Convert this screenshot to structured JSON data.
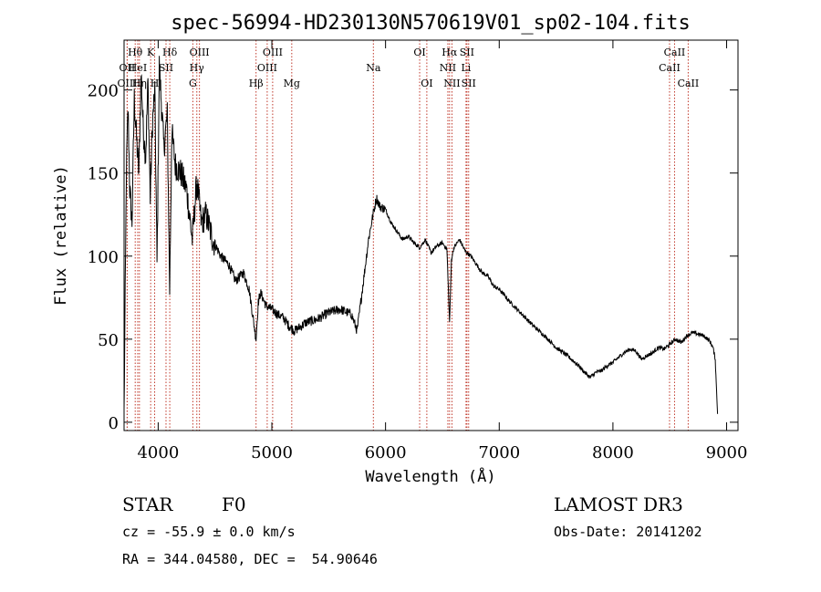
{
  "chart_data": {
    "type": "line",
    "title": "spec-56994-HD230130N570619V01_sp02-104.fits",
    "xlabel": "Wavelength (Å)",
    "ylabel": "Flux (relative)",
    "xlim": [
      3700,
      9100
    ],
    "ylim": [
      -5,
      230
    ],
    "xticks": [
      4000,
      5000,
      6000,
      7000,
      8000,
      9000
    ],
    "yticks": [
      0,
      50,
      100,
      150,
      200
    ],
    "grid": false,
    "legend": "none",
    "series": [
      {
        "name": "flux",
        "x": [
          3700,
          3710,
          3720,
          3735,
          3750,
          3770,
          3790,
          3810,
          3830,
          3850,
          3870,
          3890,
          3910,
          3930,
          3950,
          3970,
          3990,
          4010,
          4030,
          4050,
          4080,
          4101,
          4120,
          4150,
          4200,
          4250,
          4300,
          4340,
          4380,
          4420,
          4480,
          4550,
          4620,
          4680,
          4750,
          4800,
          4861,
          4880,
          4900,
          4950,
          5000,
          5050,
          5100,
          5150,
          5200,
          5300,
          5400,
          5500,
          5600,
          5700,
          5750,
          5800,
          5850,
          5890,
          5920,
          5950,
          6000,
          6050,
          6100,
          6150,
          6200,
          6250,
          6300,
          6350,
          6400,
          6450,
          6500,
          6540,
          6563,
          6580,
          6600,
          6650,
          6700,
          6750,
          6800,
          6850,
          6900,
          6950,
          7000,
          7100,
          7200,
          7300,
          7400,
          7500,
          7600,
          7700,
          7750,
          7800,
          7850,
          7900,
          7950,
          8000,
          8050,
          8100,
          8150,
          8200,
          8250,
          8300,
          8350,
          8400,
          8450,
          8500,
          8550,
          8600,
          8650,
          8700,
          8750,
          8800,
          8850,
          8880,
          8900,
          8920
        ],
        "values": [
          5,
          75,
          150,
          190,
          140,
          120,
          195,
          170,
          150,
          210,
          175,
          160,
          205,
          135,
          180,
          200,
          95,
          215,
          190,
          165,
          185,
          80,
          175,
          155,
          150,
          140,
          110,
          145,
          120,
          125,
          110,
          100,
          95,
          85,
          90,
          80,
          50,
          72,
          78,
          70,
          68,
          65,
          63,
          58,
          55,
          60,
          62,
          66,
          68,
          65,
          55,
          82,
          110,
          125,
          135,
          130,
          128,
          120,
          115,
          110,
          112,
          108,
          105,
          110,
          102,
          106,
          108,
          104,
          60,
          98,
          105,
          110,
          103,
          100,
          95,
          90,
          88,
          82,
          80,
          72,
          65,
          58,
          52,
          45,
          40,
          34,
          30,
          27,
          30,
          31,
          34,
          36,
          39,
          42,
          44,
          43,
          38,
          40,
          42,
          45,
          44,
          47,
          50,
          48,
          52,
          54,
          53,
          52,
          49,
          45,
          38,
          5
        ]
      }
    ],
    "line_markers": [
      {
        "label": "Hθ",
        "x": 3798,
        "row": 0
      },
      {
        "label": "OII",
        "x": 3727,
        "row": 1
      },
      {
        "label": "OIII",
        "x": 3728,
        "row": 2
      },
      {
        "label": "HeI",
        "x": 3820,
        "row": 1
      },
      {
        "label": "Hη",
        "x": 3835,
        "row": 2
      },
      {
        "label": "K",
        "x": 3934,
        "row": 0
      },
      {
        "label": "SII",
        "x": 4069,
        "row": 1
      },
      {
        "label": "H",
        "x": 3969,
        "row": 2
      },
      {
        "label": "Hδ",
        "x": 4102,
        "row": 0
      },
      {
        "label": "OIII",
        "x": 4363,
        "row": 0
      },
      {
        "label": "Hγ",
        "x": 4340,
        "row": 1
      },
      {
        "label": "G",
        "x": 4305,
        "row": 2
      },
      {
        "label": "OIII",
        "x": 5007,
        "row": 0
      },
      {
        "label": "OIII",
        "x": 4959,
        "row": 1
      },
      {
        "label": "Hβ",
        "x": 4861,
        "row": 2
      },
      {
        "label": "Mg",
        "x": 5175,
        "row": 2
      },
      {
        "label": "Na",
        "x": 5893,
        "row": 1
      },
      {
        "label": "OI",
        "x": 6300,
        "row": 0
      },
      {
        "label": "OI",
        "x": 6363,
        "row": 2
      },
      {
        "label": "Hα",
        "x": 6563,
        "row": 0
      },
      {
        "label": "SII",
        "x": 6716,
        "row": 0
      },
      {
        "label": "NII",
        "x": 6548,
        "row": 1
      },
      {
        "label": "Li",
        "x": 6708,
        "row": 1
      },
      {
        "label": "NII",
        "x": 6584,
        "row": 2
      },
      {
        "label": "SII",
        "x": 6731,
        "row": 2
      },
      {
        "label": "CaII",
        "x": 8542,
        "row": 0
      },
      {
        "label": "CaII",
        "x": 8498,
        "row": 1
      },
      {
        "label": "CaII",
        "x": 8662,
        "row": 2
      }
    ]
  },
  "footer": {
    "class_label": "STAR",
    "subclass": "F0",
    "survey": "LAMOST DR3",
    "redshift": "cz = -55.9 ± 0.0 km/s",
    "obs_date": "Obs-Date: 20141202",
    "coords": "RA = 344.04580, DEC =  54.90646"
  },
  "colors": {
    "line": "#000000",
    "marker": "#c0392b",
    "background": "#ffffff"
  }
}
